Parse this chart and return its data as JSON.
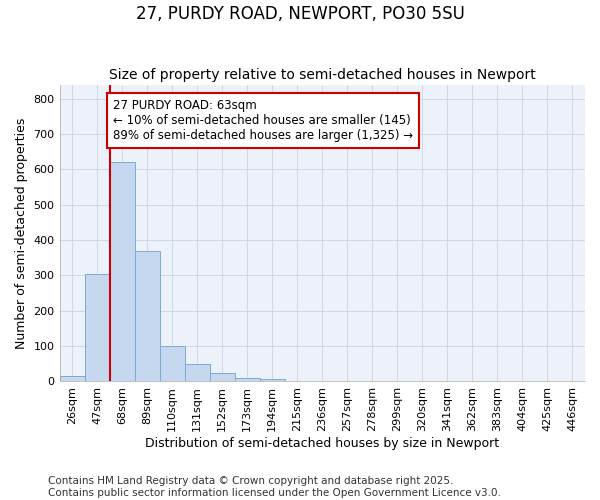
{
  "title": "27, PURDY ROAD, NEWPORT, PO30 5SU",
  "subtitle": "Size of property relative to semi-detached houses in Newport",
  "xlabel": "Distribution of semi-detached houses by size in Newport",
  "ylabel": "Number of semi-detached properties",
  "bin_labels": [
    "26sqm",
    "47sqm",
    "68sqm",
    "89sqm",
    "110sqm",
    "131sqm",
    "152sqm",
    "173sqm",
    "194sqm",
    "215sqm",
    "236sqm",
    "257sqm",
    "278sqm",
    "299sqm",
    "320sqm",
    "341sqm",
    "362sqm",
    "383sqm",
    "404sqm",
    "425sqm",
    "446sqm"
  ],
  "bar_values": [
    15,
    305,
    620,
    370,
    100,
    50,
    23,
    10,
    7,
    2,
    1,
    0,
    0,
    0,
    0,
    0,
    0,
    0,
    0,
    0,
    0
  ],
  "bar_color": "#c5d8f0",
  "bar_edge_color": "#7aadd4",
  "vline_bin": 1,
  "vline_color": "#cc0000",
  "annotation_text": "27 PURDY ROAD: 63sqm\n← 10% of semi-detached houses are smaller (145)\n89% of semi-detached houses are larger (1,325) →",
  "annotation_box_color": "#cc0000",
  "ylim": [
    0,
    840
  ],
  "yticks": [
    0,
    100,
    200,
    300,
    400,
    500,
    600,
    700,
    800
  ],
  "grid_color": "#c8d4e8",
  "bg_color": "#edf2fa",
  "footer_text": "Contains HM Land Registry data © Crown copyright and database right 2025.\nContains public sector information licensed under the Open Government Licence v3.0.",
  "title_fontsize": 12,
  "subtitle_fontsize": 10,
  "axis_label_fontsize": 9,
  "tick_fontsize": 8,
  "annotation_fontsize": 8.5,
  "footer_fontsize": 7.5
}
